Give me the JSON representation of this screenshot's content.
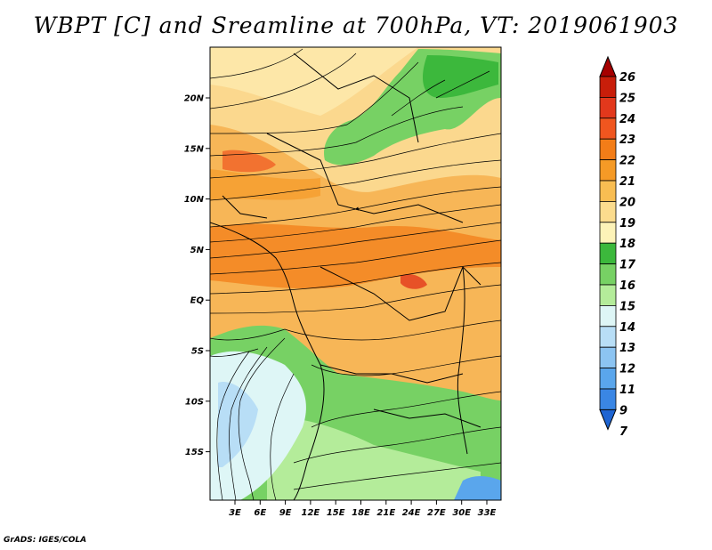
{
  "title": "WBPT [C] and Sreamline at 700hPa, VT: 2019061903",
  "footer": "GrADS: IGES/COLA",
  "map": {
    "lat_labels": [
      "20N",
      "15N",
      "10N",
      "5N",
      "EQ",
      "5S",
      "10S",
      "15S"
    ],
    "lon_labels": [
      "3E",
      "6E",
      "9E",
      "12E",
      "15E",
      "18E",
      "21E",
      "24E",
      "27E",
      "30E",
      "33E"
    ]
  },
  "colorbar": {
    "levels": [
      "26",
      "25",
      "24",
      "23",
      "22",
      "21",
      "20",
      "19",
      "18",
      "17",
      "16",
      "15",
      "14",
      "13",
      "12",
      "11",
      "9",
      "7"
    ],
    "colors": [
      "#a50000",
      "#c81e0a",
      "#e2381c",
      "#f0561f",
      "#f37d18",
      "#f59a26",
      "#f8bd52",
      "#fbdc8e",
      "#fdf3b8",
      "#3cb83c",
      "#77d164",
      "#b4ec9a",
      "#def6f6",
      "#b8def6",
      "#8cc4f2",
      "#5aa6ec",
      "#3a86e4",
      "#1e64d2"
    ]
  }
}
